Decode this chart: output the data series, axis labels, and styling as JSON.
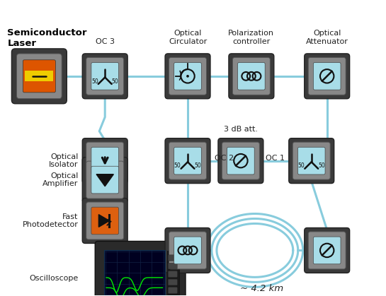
{
  "bg_color": "#ffffff",
  "cyan_face": "#a8dde8",
  "line_color": "#88ccdd",
  "line_width": 2.2,
  "labels": {
    "semiconductor_laser": "Semiconductor\nLaser",
    "oc3": "OC 3",
    "optical_circulator": "Optical\nCirculator",
    "polarization_controller": "Polarization\ncontroller",
    "optical_attenuator": "Optical\nAttenuator",
    "optical_isolator": "Optical\nIsolator",
    "optical_amplifier": "Optical\nAmplifier",
    "fast_photodetector": "Fast\nPhotodetector",
    "oscilloscope": "Oscilloscope",
    "oc2": "OC 2",
    "oc1": "OC 1",
    "3db": "3 dB att.",
    "fiber": "~ 4.2 km"
  }
}
